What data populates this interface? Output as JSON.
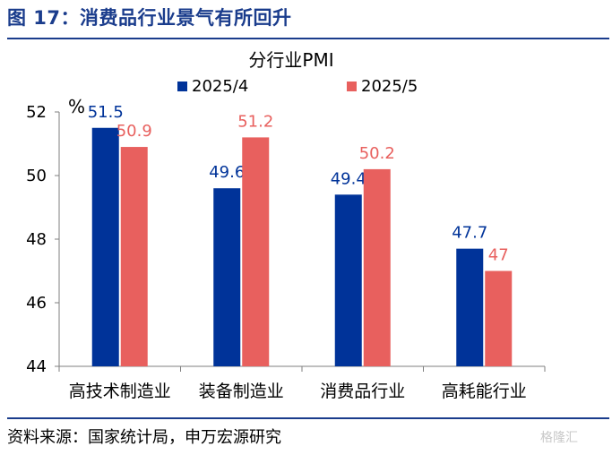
{
  "figure_title": "图 17：消费品行业景气有所回升",
  "source_note": "资料来源：国家统计局，申万宏源研究",
  "watermark": "格隆汇",
  "chart_data": {
    "type": "bar",
    "title": "分行业PMI",
    "y_unit": "%",
    "categories": [
      "高技术制造业",
      "装备制造业",
      "消费品行业",
      "高耗能行业"
    ],
    "series": [
      {
        "name": "2025/4",
        "values": [
          51.5,
          49.6,
          49.4,
          47.7
        ],
        "color": "#003399"
      },
      {
        "name": "2025/5",
        "values": [
          50.9,
          51.2,
          50.2,
          47
        ],
        "color": "#e8605e"
      }
    ],
    "value_labels": [
      [
        "51.5",
        "49.6",
        "49.4",
        "47.7"
      ],
      [
        "50.9",
        "51.2",
        "50.2",
        "47"
      ]
    ],
    "ylim": [
      44,
      52
    ],
    "yticks": [
      44,
      46,
      48,
      50,
      52
    ],
    "grid": false,
    "legend": "top"
  }
}
